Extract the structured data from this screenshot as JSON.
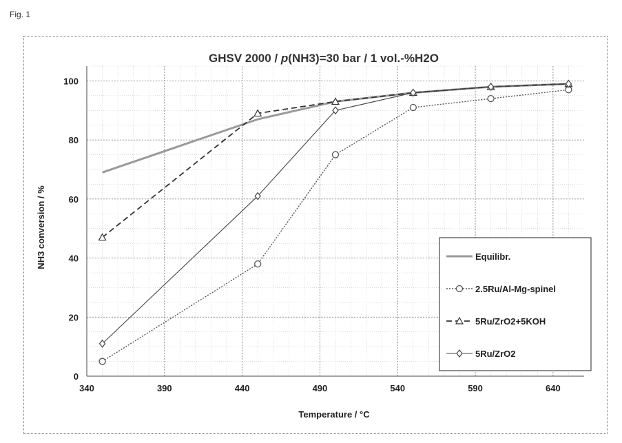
{
  "figure": {
    "label": "Fig. 1"
  },
  "chart_data": {
    "type": "line",
    "title_pre": "GHSV 2000 / ",
    "title_italic": "p",
    "title_post": "(NH3)=30 bar / 1 vol.-%H2O",
    "xlabel": "Temperature / °C",
    "ylabel": "NH3 conversion / %",
    "xlim": [
      340,
      660
    ],
    "ylim": [
      0,
      105
    ],
    "xticks": [
      340,
      390,
      440,
      490,
      540,
      590,
      640
    ],
    "yticks": [
      0,
      20,
      40,
      60,
      80,
      100
    ],
    "grid": true,
    "legend_position": "bottom-right",
    "series": [
      {
        "name": "Equilibr.",
        "color": "#9a9a9a",
        "dash": "",
        "width": 3,
        "marker": "none",
        "x": [
          350,
          400,
          450,
          500,
          550,
          600,
          650
        ],
        "y": [
          69,
          78,
          87,
          93,
          96,
          98,
          99
        ]
      },
      {
        "name": "2.5Ru/Al-Mg-spinel",
        "color": "#555555",
        "dash": "2,2",
        "width": 1.4,
        "marker": "circle",
        "x": [
          350,
          450,
          500,
          550,
          600,
          650
        ],
        "y": [
          5,
          38,
          75,
          91,
          94,
          97
        ]
      },
      {
        "name": "5Ru/ZrO2+5KOH",
        "color": "#333333",
        "dash": "8,5",
        "width": 1.8,
        "marker": "triangle",
        "x": [
          350,
          450,
          500,
          550,
          600,
          650
        ],
        "y": [
          47,
          89,
          93,
          96,
          98,
          99
        ]
      },
      {
        "name": "5Ru/ZrO2",
        "color": "#444444",
        "dash": "",
        "width": 1.1,
        "marker": "diamond",
        "x": [
          350,
          450,
          500,
          550,
          600,
          650
        ],
        "y": [
          11,
          61,
          90,
          96,
          98,
          99
        ]
      }
    ]
  }
}
